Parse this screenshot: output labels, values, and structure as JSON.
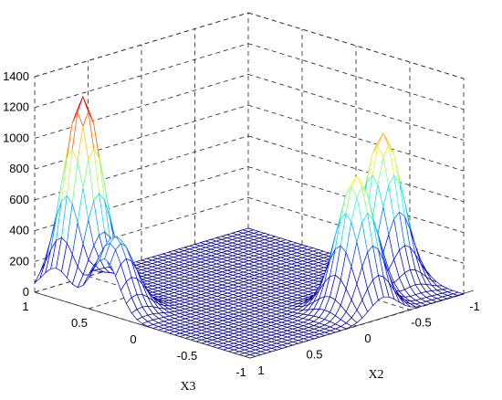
{
  "chart_data": {
    "type": "surface",
    "title": "",
    "xlabel": "X3",
    "ylabel": "X2",
    "zlabel": "",
    "x_ticks": [
      "-1",
      "-0.5",
      "0",
      "0.5",
      "1"
    ],
    "y_ticks": [
      "-1",
      "-0.5",
      "0",
      "0.5",
      "1"
    ],
    "z_ticks": [
      "0",
      "200",
      "400",
      "600",
      "800",
      "1000",
      "1200",
      "1400"
    ],
    "xlim": [
      -1,
      1
    ],
    "ylim": [
      -1,
      1
    ],
    "zlim": [
      0,
      1400
    ],
    "grid": true,
    "peaks": [
      {
        "x3": 0.8,
        "x2": 0.75,
        "height": 1260
      },
      {
        "x3": 0.35,
        "x2": 0.9,
        "height": 480
      },
      {
        "x3": -0.5,
        "x2": -0.75,
        "height": 990
      },
      {
        "x3": -0.75,
        "x2": -0.25,
        "height": 870
      }
    ],
    "colormap": [
      "#00008f",
      "#0000ff",
      "#00ffff",
      "#ffff00",
      "#ff0000",
      "#800000"
    ]
  }
}
